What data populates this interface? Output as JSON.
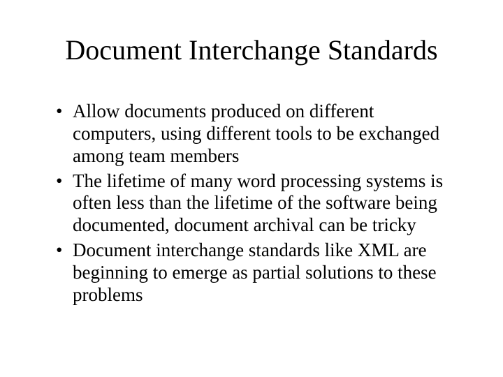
{
  "slide": {
    "title": "Document Interchange Standards",
    "title_fontsize": 40,
    "body_fontsize": 27,
    "text_color": "#000000",
    "background_color": "#ffffff",
    "font_family": "Times New Roman",
    "bullets": [
      "Allow documents produced on different computers, using different tools to be exchanged among team members",
      "The lifetime of many word processing systems is often less than the lifetime of the software being documented, document archival can be tricky",
      "Document interchange standards like XML are beginning to emerge as partial solutions to these problems"
    ]
  }
}
